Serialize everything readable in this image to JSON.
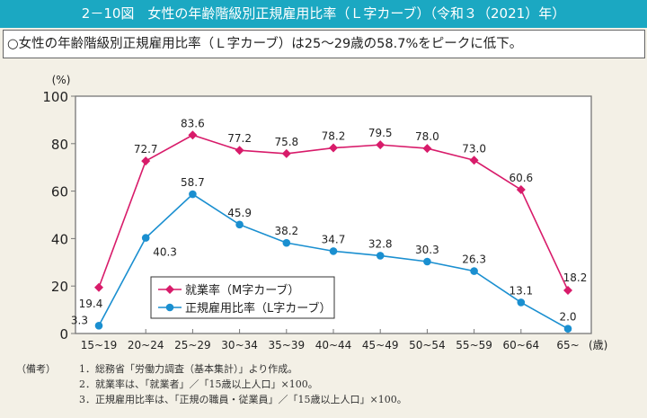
{
  "header": {
    "title": "2－10図　女性の年齢階級別正規雇用比率（Ｌ字カーブ）（令和３（2021）年）",
    "summary": "○女性の年齢階級別正規雇用比率（Ｌ字カーブ）は25～29歳の58.7%をピークに低下。"
  },
  "chart_data": {
    "type": "line",
    "title": "",
    "ylabel": "(%)",
    "xlabel": "(歳)",
    "ylim": [
      0,
      100
    ],
    "yticks": [
      "0",
      "20",
      "40",
      "60",
      "80",
      "100"
    ],
    "categories": [
      "15~19",
      "20~24",
      "25~29",
      "30~34",
      "35~39",
      "40~44",
      "45~49",
      "50~54",
      "55~59",
      "60~64",
      "65~"
    ],
    "grid": false,
    "legend_position": "bottom-left",
    "series": [
      {
        "name": "就業率（M字カーブ）",
        "color": "#d81b6a",
        "marker": "diamond",
        "values": [
          19.4,
          72.7,
          83.6,
          77.2,
          75.8,
          78.2,
          79.5,
          78.0,
          73.0,
          60.6,
          18.2
        ],
        "labels": [
          "19.4",
          "72.7",
          "83.6",
          "77.2",
          "75.8",
          "78.2",
          "79.5",
          "78.0",
          "73.0",
          "60.6",
          "18.2"
        ]
      },
      {
        "name": "正規雇用比率（L字カーブ）",
        "color": "#1a8fd0",
        "marker": "circle",
        "values": [
          3.3,
          40.3,
          58.7,
          45.9,
          38.2,
          34.7,
          32.8,
          30.3,
          26.3,
          13.1,
          2.0
        ],
        "labels": [
          "3.3",
          "40.3",
          "58.7",
          "45.9",
          "38.2",
          "34.7",
          "32.8",
          "30.3",
          "26.3",
          "13.1",
          "2.0"
        ]
      }
    ]
  },
  "notes": {
    "label": "（備考）",
    "items": [
      "1．総務省「労働力調査（基本集計）」より作成。",
      "2．就業率は、「就業者」／「15歳以上人口」×100。",
      "3．正規雇用比率は、「正規の職員・従業員」／「15歳以上人口」×100。"
    ]
  }
}
